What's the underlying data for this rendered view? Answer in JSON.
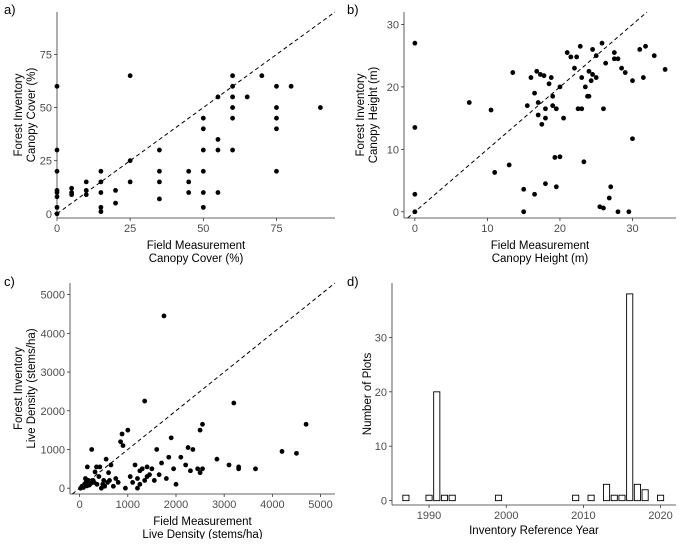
{
  "chart_data": [
    {
      "panel": "a)",
      "type": "scatter",
      "xlabel_lines": [
        "Field Measurement",
        "Canopy Cover (%)"
      ],
      "ylabel_lines": [
        "Forest Inventory",
        "Canopy Cover (%)"
      ],
      "xlim": [
        0,
        95
      ],
      "ylim": [
        -2,
        95
      ],
      "xticks": [
        0,
        25,
        50,
        75
      ],
      "yticks": [
        0,
        25,
        50,
        75
      ],
      "reference_line": "1:1 dashed",
      "points": [
        [
          0,
          60
        ],
        [
          0,
          30
        ],
        [
          0,
          20
        ],
        [
          0,
          11
        ],
        [
          0,
          10
        ],
        [
          0,
          8
        ],
        [
          0,
          3
        ],
        [
          0,
          0
        ],
        [
          5,
          12
        ],
        [
          5,
          10
        ],
        [
          5,
          9
        ],
        [
          10,
          15
        ],
        [
          10,
          11
        ],
        [
          10,
          9
        ],
        [
          15,
          20
        ],
        [
          15,
          15
        ],
        [
          15,
          10
        ],
        [
          15,
          3
        ],
        [
          15,
          1
        ],
        [
          20,
          11
        ],
        [
          20,
          5
        ],
        [
          25,
          65
        ],
        [
          25,
          25
        ],
        [
          25,
          15
        ],
        [
          35,
          30
        ],
        [
          35,
          20
        ],
        [
          35,
          15
        ],
        [
          35,
          7
        ],
        [
          45,
          20
        ],
        [
          45,
          15
        ],
        [
          45,
          10
        ],
        [
          50,
          45
        ],
        [
          50,
          40
        ],
        [
          50,
          30
        ],
        [
          50,
          20
        ],
        [
          50,
          10
        ],
        [
          50,
          3
        ],
        [
          55,
          55
        ],
        [
          55,
          35
        ],
        [
          55,
          30
        ],
        [
          55,
          10
        ],
        [
          60,
          65
        ],
        [
          60,
          60
        ],
        [
          60,
          55
        ],
        [
          60,
          50
        ],
        [
          60,
          45
        ],
        [
          60,
          30
        ],
        [
          65,
          55
        ],
        [
          70,
          65
        ],
        [
          75,
          60
        ],
        [
          75,
          50
        ],
        [
          75,
          45
        ],
        [
          75,
          40
        ],
        [
          75,
          20
        ],
        [
          80,
          60
        ],
        [
          90,
          50
        ]
      ]
    },
    {
      "panel": "b)",
      "type": "scatter",
      "xlabel_lines": [
        "Field Measurement",
        "Canopy Height (m)"
      ],
      "ylabel_lines": [
        "Forest Inventory",
        "Canopy Height (m)"
      ],
      "xlim": [
        -1.5,
        36
      ],
      "ylim": [
        -1,
        32
      ],
      "xticks": [
        0,
        10,
        20,
        30
      ],
      "yticks": [
        0,
        10,
        20,
        30
      ],
      "reference_line": "1:1 dashed",
      "points": [
        [
          0,
          27
        ],
        [
          0,
          13.5
        ],
        [
          0,
          2.8
        ],
        [
          0,
          0
        ],
        [
          7.5,
          17.5
        ],
        [
          10.5,
          16.3
        ],
        [
          11,
          6.3
        ],
        [
          13,
          7.5
        ],
        [
          13.5,
          22.3
        ],
        [
          15,
          3.6
        ],
        [
          15,
          0
        ],
        [
          15.5,
          17
        ],
        [
          16,
          21.5
        ],
        [
          16.5,
          2.8
        ],
        [
          16.5,
          19
        ],
        [
          16.8,
          22.5
        ],
        [
          17,
          17.5
        ],
        [
          17,
          15.5
        ],
        [
          17.3,
          22
        ],
        [
          17.5,
          14
        ],
        [
          17.8,
          21.8
        ],
        [
          18,
          16.5
        ],
        [
          18,
          15
        ],
        [
          18,
          4.5
        ],
        [
          18.5,
          20.5
        ],
        [
          18.8,
          21.5
        ],
        [
          19,
          18.5
        ],
        [
          19,
          17
        ],
        [
          19.3,
          8.7
        ],
        [
          19.5,
          16.5
        ],
        [
          19.5,
          4
        ],
        [
          20,
          20
        ],
        [
          20,
          8.8
        ],
        [
          20.5,
          15
        ],
        [
          21,
          25.5
        ],
        [
          21.5,
          24.8
        ],
        [
          22,
          23
        ],
        [
          22.3,
          24.8
        ],
        [
          22.5,
          16.5
        ],
        [
          22.8,
          26.5
        ],
        [
          23,
          21.5
        ],
        [
          23,
          16.5
        ],
        [
          23.3,
          8
        ],
        [
          23.5,
          20
        ],
        [
          23.8,
          18.5
        ],
        [
          24,
          22.5
        ],
        [
          24,
          18.5
        ],
        [
          24.3,
          21
        ],
        [
          24.5,
          26
        ],
        [
          24.5,
          22
        ],
        [
          25,
          25
        ],
        [
          25,
          21.5
        ],
        [
          25.5,
          0.8
        ],
        [
          25.8,
          27
        ],
        [
          26,
          0.6
        ],
        [
          26,
          16.5
        ],
        [
          26.3,
          23.8
        ],
        [
          26.8,
          2.2
        ],
        [
          27,
          4
        ],
        [
          27.5,
          25.5
        ],
        [
          27.5,
          24.5
        ],
        [
          28,
          24.5
        ],
        [
          28,
          0
        ],
        [
          28.5,
          23
        ],
        [
          29,
          22.3
        ],
        [
          29.5,
          0
        ],
        [
          30,
          11.7
        ],
        [
          30,
          21
        ],
        [
          31,
          26
        ],
        [
          31.5,
          21.5
        ],
        [
          31.8,
          26.5
        ],
        [
          33,
          25
        ],
        [
          34.5,
          22.8
        ]
      ]
    },
    {
      "panel": "c)",
      "type": "scatter",
      "xlabel_lines": [
        "Field Measurement",
        "Live Density (stems/ha)"
      ],
      "ylabel_lines": [
        "Forest Inventory",
        "Live Density (stems/ha)"
      ],
      "xlim": [
        -200,
        5300
      ],
      "ylim": [
        -150,
        5300
      ],
      "xticks": [
        0,
        1000,
        2000,
        3000,
        4000,
        5000
      ],
      "yticks": [
        0,
        1000,
        2000,
        3000,
        4000,
        5000
      ],
      "reference_line": "1:1 dashed",
      "points": [
        [
          20,
          0
        ],
        [
          50,
          50
        ],
        [
          80,
          20
        ],
        [
          100,
          100
        ],
        [
          120,
          250
        ],
        [
          130,
          150
        ],
        [
          150,
          60
        ],
        [
          160,
          550
        ],
        [
          180,
          200
        ],
        [
          200,
          80
        ],
        [
          230,
          120
        ],
        [
          250,
          1000
        ],
        [
          280,
          200
        ],
        [
          300,
          150
        ],
        [
          320,
          420
        ],
        [
          350,
          550
        ],
        [
          360,
          100
        ],
        [
          400,
          300
        ],
        [
          420,
          550
        ],
        [
          450,
          0
        ],
        [
          480,
          100
        ],
        [
          500,
          200
        ],
        [
          520,
          50
        ],
        [
          550,
          750
        ],
        [
          580,
          150
        ],
        [
          600,
          400
        ],
        [
          620,
          200
        ],
        [
          650,
          600
        ],
        [
          700,
          50
        ],
        [
          750,
          250
        ],
        [
          800,
          150
        ],
        [
          850,
          1200
        ],
        [
          880,
          1400
        ],
        [
          900,
          1100
        ],
        [
          950,
          0
        ],
        [
          1000,
          1500
        ],
        [
          1050,
          300
        ],
        [
          1100,
          150
        ],
        [
          1150,
          600
        ],
        [
          1200,
          250
        ],
        [
          1200,
          0
        ],
        [
          1250,
          100
        ],
        [
          1250,
          450
        ],
        [
          1300,
          500
        ],
        [
          1350,
          2250
        ],
        [
          1350,
          200
        ],
        [
          1400,
          300
        ],
        [
          1400,
          550
        ],
        [
          1450,
          350
        ],
        [
          1500,
          500
        ],
        [
          1550,
          200
        ],
        [
          1600,
          1000
        ],
        [
          1650,
          350
        ],
        [
          1700,
          650
        ],
        [
          1750,
          4450
        ],
        [
          1800,
          250
        ],
        [
          1850,
          800
        ],
        [
          1900,
          1300
        ],
        [
          1950,
          500
        ],
        [
          2000,
          100
        ],
        [
          2100,
          800
        ],
        [
          2200,
          600
        ],
        [
          2250,
          1050
        ],
        [
          2300,
          450
        ],
        [
          2350,
          1000
        ],
        [
          2450,
          500
        ],
        [
          2500,
          400
        ],
        [
          2500,
          1500
        ],
        [
          2550,
          500
        ],
        [
          2550,
          1650
        ],
        [
          2850,
          750
        ],
        [
          3100,
          600
        ],
        [
          3200,
          2200
        ],
        [
          3300,
          500
        ],
        [
          3300,
          550
        ],
        [
          3650,
          500
        ],
        [
          4200,
          950
        ],
        [
          4500,
          900
        ],
        [
          4700,
          1650
        ]
      ]
    },
    {
      "panel": "d)",
      "type": "bar",
      "xlabel": "Inventory Reference Year",
      "ylabel": "Number of Plots",
      "xlim": [
        1985.2,
        2022
      ],
      "ylim": [
        -0.8,
        40
      ],
      "xticks": [
        1990,
        2000,
        2010,
        2020
      ],
      "yticks": [
        0,
        10,
        20,
        30
      ],
      "years": [
        1987,
        1990,
        1991,
        1992,
        1993,
        1999,
        2009,
        2011,
        2013,
        2014,
        2015,
        2016,
        2017,
        2018,
        2020
      ],
      "counts": [
        1,
        1,
        20,
        1,
        1,
        1,
        1,
        1,
        3,
        1,
        1,
        38,
        3,
        2,
        1
      ]
    }
  ]
}
